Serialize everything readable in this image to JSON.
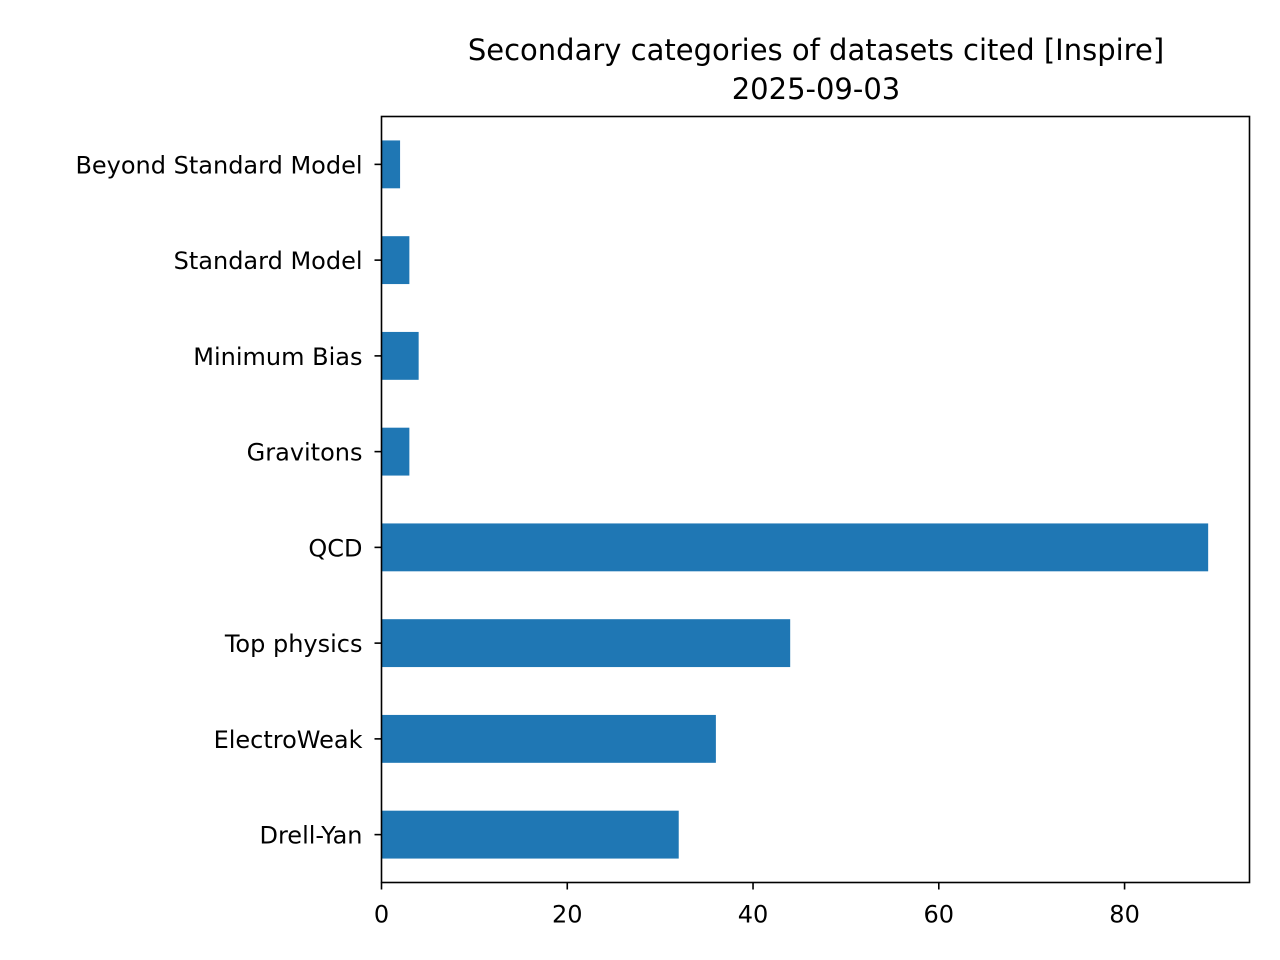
{
  "chart_data": {
    "type": "bar",
    "orientation": "horizontal",
    "title": "Secondary categories of datasets cited [Inspire]",
    "subtitle": "2025-09-03",
    "xlabel": "",
    "ylabel": "",
    "categories": [
      "Beyond Standard Model",
      "Standard Model",
      "Minimum Bias",
      "Gravitons",
      "QCD",
      "Top physics",
      "ElectroWeak",
      "Drell-Yan"
    ],
    "values": [
      2,
      3,
      4,
      3,
      89,
      44,
      36,
      32
    ],
    "xlim": [
      0,
      93.45
    ],
    "xticks": [
      0,
      20,
      40,
      60,
      80
    ],
    "xtick_labels": [
      "0",
      "20",
      "40",
      "60",
      "80"
    ],
    "grid": false,
    "legend": "none",
    "colors": {
      "bar": "#1f77b4",
      "axis": "#000000",
      "background": "#ffffff"
    }
  }
}
